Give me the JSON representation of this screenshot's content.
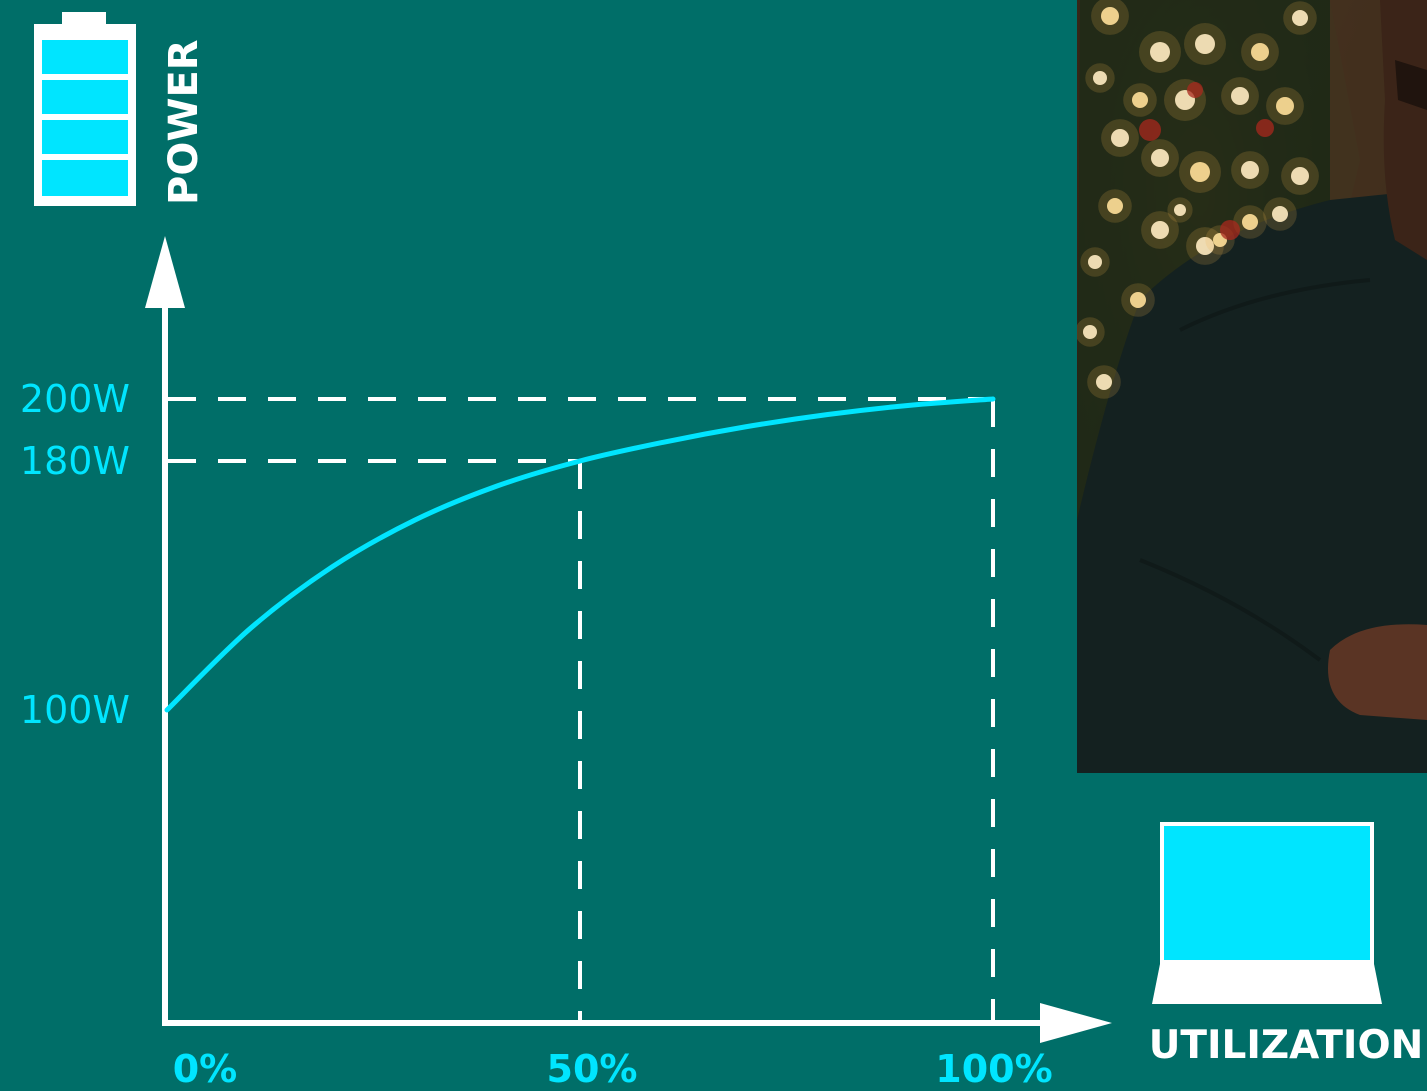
{
  "colors": {
    "background": "#006e68",
    "accent": "#00e5ff",
    "axis": "#ffffff",
    "guide": "#ffffff"
  },
  "icons": {
    "y_icon": "battery-icon",
    "x_icon": "laptop-icon"
  },
  "photo": {
    "description_icon": "photo-person-with-christmas-tree"
  },
  "chart_data": {
    "type": "line",
    "xlabel": "UTILIZATION",
    "ylabel": "POWER",
    "x_ticks": [
      "0%",
      "50%",
      "100%"
    ],
    "y_ticks": [
      "100W",
      "180W",
      "200W"
    ],
    "xlim": [
      0,
      100
    ],
    "ylim": [
      0,
      200
    ],
    "grid": false,
    "series": [
      {
        "x": [
          0,
          10,
          20,
          30,
          40,
          50,
          60,
          70,
          80,
          90,
          100
        ],
        "y": [
          100,
          126,
          146,
          161,
          172,
          180,
          186,
          191,
          195,
          198,
          200
        ]
      }
    ],
    "reference_points": [
      {
        "x": 50,
        "y": 180
      },
      {
        "x": 100,
        "y": 200
      }
    ]
  }
}
